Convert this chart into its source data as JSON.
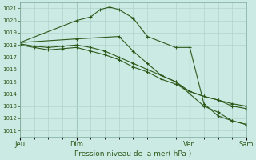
{
  "background_color": "#cceae4",
  "grid_color": "#b0d4cc",
  "line_color": "#2d5a1b",
  "title": "Pression niveau de la mer( hPa )",
  "figsize": [
    3.2,
    2.0
  ],
  "dpi": 100,
  "ylim": [
    1010.5,
    1021.5
  ],
  "yticks": [
    1011,
    1012,
    1013,
    1014,
    1015,
    1016,
    1017,
    1018,
    1019,
    1020,
    1021
  ],
  "xlim": [
    0,
    48
  ],
  "day_positions": [
    0,
    12,
    36,
    48
  ],
  "day_labels": [
    "Jeu",
    "Dim",
    "Ven",
    "Sam"
  ],
  "series": [
    {
      "x": [
        0,
        12,
        15,
        17,
        19,
        21,
        24,
        27,
        33,
        36,
        39,
        42,
        45,
        48
      ],
      "y": [
        1018.2,
        1020.0,
        1020.3,
        1020.9,
        1021.1,
        1020.9,
        1020.2,
        1018.7,
        1017.8,
        1017.8,
        1013.2,
        1012.2,
        1011.8,
        1011.5
      ]
    },
    {
      "x": [
        0,
        12,
        21,
        24,
        27,
        30,
        33,
        36,
        39,
        42,
        45,
        48
      ],
      "y": [
        1018.2,
        1018.5,
        1018.7,
        1017.5,
        1016.5,
        1015.5,
        1015.0,
        1014.0,
        1013.0,
        1012.5,
        1011.8,
        1011.5
      ]
    },
    {
      "x": [
        0,
        3,
        6,
        9,
        12,
        15,
        18,
        21,
        24,
        27,
        30,
        33,
        36,
        39,
        42,
        45,
        48
      ],
      "y": [
        1018.1,
        1017.9,
        1017.8,
        1017.9,
        1018.0,
        1017.8,
        1017.5,
        1017.0,
        1016.5,
        1016.0,
        1015.5,
        1015.0,
        1014.2,
        1013.8,
        1013.5,
        1013.2,
        1013.0
      ]
    },
    {
      "x": [
        0,
        3,
        6,
        9,
        12,
        15,
        18,
        21,
        24,
        27,
        30,
        33,
        36,
        39,
        42,
        45,
        48
      ],
      "y": [
        1018.0,
        1017.8,
        1017.6,
        1017.7,
        1017.8,
        1017.5,
        1017.2,
        1016.8,
        1016.2,
        1015.8,
        1015.2,
        1014.8,
        1014.2,
        1013.8,
        1013.5,
        1013.0,
        1012.8
      ]
    }
  ]
}
